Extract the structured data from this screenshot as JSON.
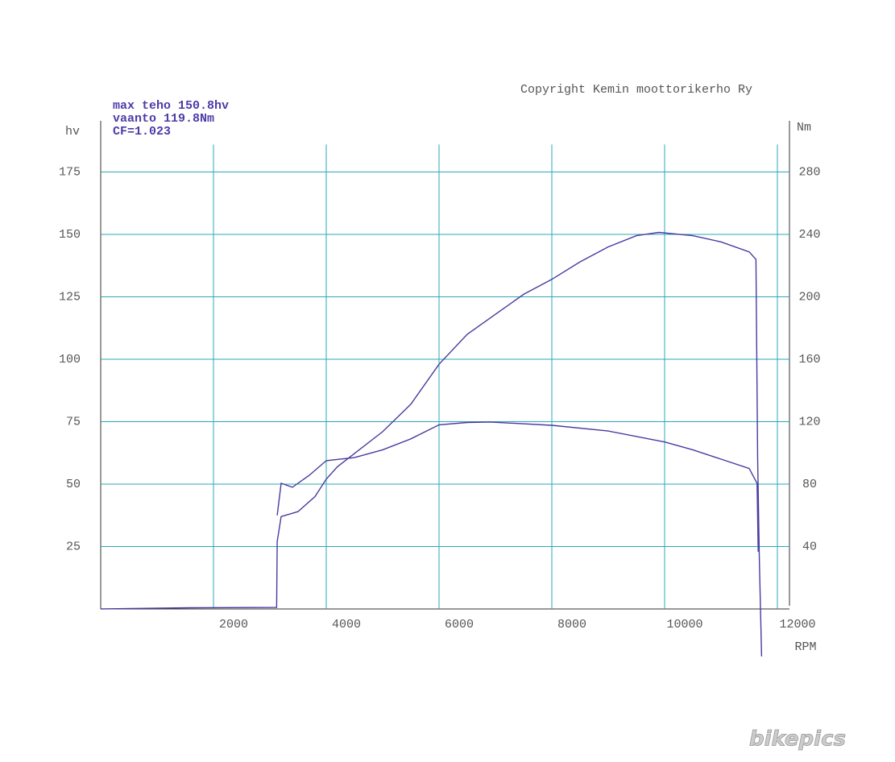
{
  "chart_data": {
    "type": "line",
    "copyright": "Copyright Kemin moottorikerho Ry",
    "annotations": [
      "max teho 150.8hv",
      "vaanto 119.8Nm",
      "CF=1.023"
    ],
    "ylabel": "hv",
    "y2label": "Nm",
    "xlabel": "RPM",
    "watermark": "bikepics",
    "xlim": [
      0,
      12000
    ],
    "xticks": [
      2000,
      4000,
      6000,
      8000,
      10000,
      12000
    ],
    "ylim": [
      0,
      186
    ],
    "yticks": [
      25,
      50,
      75,
      100,
      125,
      150,
      175
    ],
    "y2lim": [
      0,
      297.6
    ],
    "y2ticks": [
      40,
      80,
      120,
      160,
      200,
      240,
      280
    ],
    "grid": true,
    "grid_color": "#2aa8b8",
    "series": [
      {
        "name": "hv",
        "color": "#4a3aa0",
        "x": [
          0,
          1600,
          3120,
          3130,
          3200,
          3500,
          3800,
          4000,
          4200,
          5000,
          5500,
          6000,
          6500,
          7000,
          7500,
          8000,
          8500,
          9000,
          9500,
          9900,
          10500,
          11000,
          11500,
          11620,
          11650,
          11680,
          11720
        ],
        "values": [
          0,
          0.5,
          0.6,
          27,
          37,
          39,
          45,
          52,
          57,
          71,
          82,
          98,
          110,
          118,
          126,
          132,
          139,
          145,
          149.5,
          150.8,
          149.5,
          147,
          143,
          140,
          60,
          20,
          -19
        ]
      },
      {
        "name": "Nm",
        "color": "#4a3aa0",
        "axis": "y2",
        "x": [
          3130,
          3200,
          3400,
          3700,
          4000,
          4500,
          5000,
          5500,
          6000,
          6500,
          6900,
          8000,
          9000,
          10000,
          10500,
          11000,
          11500,
          11640,
          11660
        ],
        "values": [
          60,
          80.5,
          78,
          85.7,
          95,
          97,
          102,
          109,
          118,
          119.5,
          119.8,
          117.7,
          114,
          107,
          102,
          96,
          90,
          80.5,
          36.6
        ]
      }
    ]
  }
}
